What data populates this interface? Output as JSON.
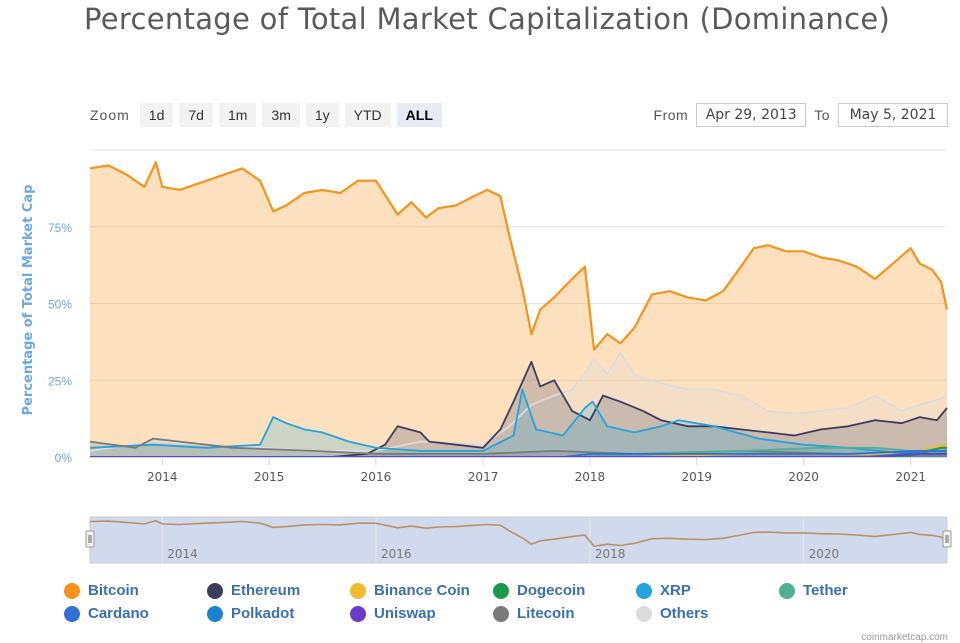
{
  "title": "Percentage of Total Market Capitalization (Dominance)",
  "zoom": {
    "label": "Zoom",
    "buttons": [
      "1d",
      "7d",
      "1m",
      "3m",
      "1y",
      "YTD",
      "ALL"
    ],
    "active": "ALL"
  },
  "range": {
    "from_label": "From",
    "from_value": "Apr 29, 2013",
    "to_label": "To",
    "to_value": "May 5, 2021"
  },
  "credit": "coinmarketcap.com",
  "colors": {
    "Bitcoin": "#f7931a",
    "Ethereum": "#3c3c5d",
    "Binance Coin": "#f3ba2f",
    "Dogecoin": "#1a9a4a",
    "XRP": "#23a4dc",
    "Tether": "#50af95",
    "Cardano": "#2f6fd6",
    "Polkadot": "#1b82d1",
    "Uniswap": "#6a3cc9",
    "Litecoin": "#7a7a7a",
    "Others": "#dcdcdc"
  },
  "chart_data": {
    "type": "area",
    "ylabel": "Percentage of Total Market Cap",
    "ylim": [
      0,
      100
    ],
    "yticks": [
      0,
      25,
      50,
      75
    ],
    "ytick_labels": [
      "0%",
      "25%",
      "50%",
      "75%"
    ],
    "xlim": [
      "2013-04-29",
      "2021-05-05"
    ],
    "xticks": [
      "2014-01-01",
      "2015-01-01",
      "2016-01-01",
      "2017-01-01",
      "2018-01-01",
      "2019-01-01",
      "2020-01-01",
      "2021-01-01"
    ],
    "xtick_labels": [
      "2014",
      "2015",
      "2016",
      "2017",
      "2018",
      "2019",
      "2020",
      "2021"
    ],
    "navigator_labels": [
      "2014",
      "2016",
      "2018",
      "2020"
    ],
    "legend": [
      "Bitcoin",
      "Ethereum",
      "Binance Coin",
      "Dogecoin",
      "XRP",
      "Tether",
      "Cardano",
      "Polkadot",
      "Uniswap",
      "Litecoin",
      "Others"
    ],
    "legend_position": "bottom",
    "series": [
      {
        "name": "Bitcoin",
        "points": [
          [
            "2013-04-29",
            94
          ],
          [
            "2013-07-01",
            95
          ],
          [
            "2013-09-01",
            92
          ],
          [
            "2013-11-01",
            88
          ],
          [
            "2013-12-10",
            96
          ],
          [
            "2014-01-01",
            88
          ],
          [
            "2014-03-01",
            87
          ],
          [
            "2014-05-01",
            89
          ],
          [
            "2014-08-01",
            92
          ],
          [
            "2014-10-01",
            94
          ],
          [
            "2014-12-01",
            90
          ],
          [
            "2015-01-15",
            80
          ],
          [
            "2015-03-01",
            82
          ],
          [
            "2015-05-01",
            86
          ],
          [
            "2015-07-01",
            87
          ],
          [
            "2015-09-01",
            86
          ],
          [
            "2015-11-01",
            90
          ],
          [
            "2016-01-01",
            90
          ],
          [
            "2016-03-15",
            79
          ],
          [
            "2016-05-01",
            83
          ],
          [
            "2016-06-20",
            78
          ],
          [
            "2016-08-01",
            81
          ],
          [
            "2016-10-01",
            82
          ],
          [
            "2016-12-01",
            85
          ],
          [
            "2017-01-15",
            87
          ],
          [
            "2017-03-01",
            85
          ],
          [
            "2017-04-01",
            72
          ],
          [
            "2017-05-15",
            55
          ],
          [
            "2017-06-15",
            40
          ],
          [
            "2017-07-15",
            48
          ],
          [
            "2017-09-01",
            52
          ],
          [
            "2017-11-01",
            58
          ],
          [
            "2017-12-15",
            62
          ],
          [
            "2018-01-15",
            35
          ],
          [
            "2018-03-01",
            40
          ],
          [
            "2018-04-15",
            37
          ],
          [
            "2018-06-01",
            42
          ],
          [
            "2018-08-01",
            53
          ],
          [
            "2018-10-01",
            54
          ],
          [
            "2018-12-01",
            52
          ],
          [
            "2019-02-01",
            51
          ],
          [
            "2019-04-01",
            54
          ],
          [
            "2019-06-01",
            62
          ],
          [
            "2019-07-15",
            68
          ],
          [
            "2019-09-01",
            69
          ],
          [
            "2019-11-01",
            67
          ],
          [
            "2020-01-01",
            67
          ],
          [
            "2020-03-01",
            65
          ],
          [
            "2020-05-01",
            64
          ],
          [
            "2020-07-01",
            62
          ],
          [
            "2020-09-01",
            58
          ],
          [
            "2020-11-01",
            63
          ],
          [
            "2021-01-01",
            68
          ],
          [
            "2021-02-01",
            63
          ],
          [
            "2021-03-15",
            61
          ],
          [
            "2021-04-15",
            57
          ],
          [
            "2021-05-05",
            48
          ]
        ]
      },
      {
        "name": "Ethereum",
        "points": [
          [
            "2013-04-29",
            0
          ],
          [
            "2015-08-01",
            0
          ],
          [
            "2015-12-01",
            1
          ],
          [
            "2016-02-01",
            4
          ],
          [
            "2016-03-15",
            10
          ],
          [
            "2016-06-01",
            8
          ],
          [
            "2016-07-01",
            5
          ],
          [
            "2016-10-01",
            4
          ],
          [
            "2017-01-01",
            3
          ],
          [
            "2017-03-01",
            9
          ],
          [
            "2017-04-15",
            18
          ],
          [
            "2017-06-15",
            31
          ],
          [
            "2017-07-15",
            23
          ],
          [
            "2017-09-01",
            25
          ],
          [
            "2017-11-01",
            15
          ],
          [
            "2018-01-01",
            12
          ],
          [
            "2018-02-15",
            20
          ],
          [
            "2018-04-15",
            18
          ],
          [
            "2018-07-01",
            15
          ],
          [
            "2018-09-01",
            12
          ],
          [
            "2018-12-01",
            10
          ],
          [
            "2019-03-01",
            10
          ],
          [
            "2019-06-01",
            9
          ],
          [
            "2019-09-01",
            8
          ],
          [
            "2019-12-01",
            7
          ],
          [
            "2020-03-01",
            9
          ],
          [
            "2020-06-01",
            10
          ],
          [
            "2020-09-01",
            12
          ],
          [
            "2020-12-01",
            11
          ],
          [
            "2021-02-01",
            13
          ],
          [
            "2021-04-01",
            12
          ],
          [
            "2021-05-05",
            16
          ]
        ]
      },
      {
        "name": "XRP",
        "points": [
          [
            "2013-04-29",
            3
          ],
          [
            "2013-12-01",
            4
          ],
          [
            "2014-06-01",
            3
          ],
          [
            "2014-12-01",
            4
          ],
          [
            "2015-01-15",
            13
          ],
          [
            "2015-03-01",
            11
          ],
          [
            "2015-05-01",
            9
          ],
          [
            "2015-07-01",
            8
          ],
          [
            "2015-10-01",
            5
          ],
          [
            "2016-01-01",
            3
          ],
          [
            "2016-06-01",
            2
          ],
          [
            "2017-01-01",
            2
          ],
          [
            "2017-04-15",
            7
          ],
          [
            "2017-05-15",
            22
          ],
          [
            "2017-07-01",
            9
          ],
          [
            "2017-10-01",
            7
          ],
          [
            "2017-12-15",
            16
          ],
          [
            "2018-01-10",
            18
          ],
          [
            "2018-03-01",
            10
          ],
          [
            "2018-06-01",
            8
          ],
          [
            "2018-09-01",
            10
          ],
          [
            "2018-11-01",
            12
          ],
          [
            "2019-03-01",
            10
          ],
          [
            "2019-08-01",
            6
          ],
          [
            "2020-01-01",
            4
          ],
          [
            "2020-06-01",
            3
          ],
          [
            "2021-01-01",
            1
          ],
          [
            "2021-04-15",
            3
          ],
          [
            "2021-05-05",
            3
          ]
        ]
      },
      {
        "name": "Others",
        "points": [
          [
            "2013-04-29",
            2
          ],
          [
            "2013-12-01",
            5
          ],
          [
            "2014-06-01",
            4
          ],
          [
            "2014-12-01",
            3
          ],
          [
            "2015-06-01",
            2
          ],
          [
            "2016-01-01",
            2
          ],
          [
            "2016-06-01",
            5
          ],
          [
            "2017-01-01",
            4
          ],
          [
            "2017-04-01",
            10
          ],
          [
            "2017-06-15",
            17
          ],
          [
            "2017-09-01",
            20
          ],
          [
            "2017-11-01",
            22
          ],
          [
            "2017-12-20",
            28
          ],
          [
            "2018-01-15",
            32
          ],
          [
            "2018-03-01",
            27
          ],
          [
            "2018-04-15",
            34
          ],
          [
            "2018-06-01",
            27
          ],
          [
            "2018-09-01",
            24
          ],
          [
            "2018-12-01",
            22
          ],
          [
            "2019-03-01",
            22
          ],
          [
            "2019-06-01",
            20
          ],
          [
            "2019-09-01",
            15
          ],
          [
            "2019-12-01",
            14
          ],
          [
            "2020-03-01",
            15
          ],
          [
            "2020-06-01",
            16
          ],
          [
            "2020-09-01",
            20
          ],
          [
            "2020-12-01",
            15
          ],
          [
            "2021-02-01",
            17
          ],
          [
            "2021-04-15",
            19
          ],
          [
            "2021-05-05",
            20
          ]
        ]
      },
      {
        "name": "Litecoin",
        "points": [
          [
            "2013-04-29",
            5
          ],
          [
            "2013-10-01",
            3
          ],
          [
            "2013-12-01",
            6
          ],
          [
            "2014-03-01",
            5
          ],
          [
            "2014-09-01",
            3
          ],
          [
            "2015-06-01",
            2
          ],
          [
            "2016-01-01",
            1
          ],
          [
            "2017-01-01",
            1
          ],
          [
            "2017-09-01",
            2
          ],
          [
            "2018-06-01",
            1
          ],
          [
            "2019-06-01",
            2
          ],
          [
            "2020-06-01",
            1
          ],
          [
            "2021-05-05",
            1
          ]
        ]
      },
      {
        "name": "Tether",
        "points": [
          [
            "2013-04-29",
            0
          ],
          [
            "2017-12-01",
            0
          ],
          [
            "2018-06-01",
            1
          ],
          [
            "2019-06-01",
            2
          ],
          [
            "2020-03-01",
            3
          ],
          [
            "2020-09-01",
            3
          ],
          [
            "2021-01-01",
            2
          ],
          [
            "2021-05-05",
            2
          ]
        ]
      },
      {
        "name": "Binance Coin",
        "points": [
          [
            "2013-04-29",
            0
          ],
          [
            "2018-06-01",
            0
          ],
          [
            "2019-06-01",
            1
          ],
          [
            "2020-06-01",
            1
          ],
          [
            "2021-01-01",
            1
          ],
          [
            "2021-03-01",
            3
          ],
          [
            "2021-05-05",
            4
          ]
        ]
      },
      {
        "name": "Dogecoin",
        "points": [
          [
            "2013-04-29",
            0
          ],
          [
            "2014-01-01",
            0
          ],
          [
            "2020-12-01",
            0
          ],
          [
            "2021-02-01",
            1
          ],
          [
            "2021-04-15",
            3
          ],
          [
            "2021-05-05",
            3
          ]
        ]
      },
      {
        "name": "Cardano",
        "points": [
          [
            "2013-04-29",
            0
          ],
          [
            "2017-10-01",
            0
          ],
          [
            "2018-01-01",
            1
          ],
          [
            "2018-06-01",
            1
          ],
          [
            "2020-06-01",
            1
          ],
          [
            "2021-02-01",
            2
          ],
          [
            "2021-05-05",
            2
          ]
        ]
      },
      {
        "name": "Polkadot",
        "points": [
          [
            "2013-04-29",
            0
          ],
          [
            "2020-08-01",
            0
          ],
          [
            "2020-12-01",
            1
          ],
          [
            "2021-03-01",
            2
          ],
          [
            "2021-05-05",
            2
          ]
        ]
      },
      {
        "name": "Uniswap",
        "points": [
          [
            "2013-04-29",
            0
          ],
          [
            "2020-09-01",
            0
          ],
          [
            "2021-02-01",
            1
          ],
          [
            "2021-05-05",
            1
          ]
        ]
      }
    ]
  }
}
